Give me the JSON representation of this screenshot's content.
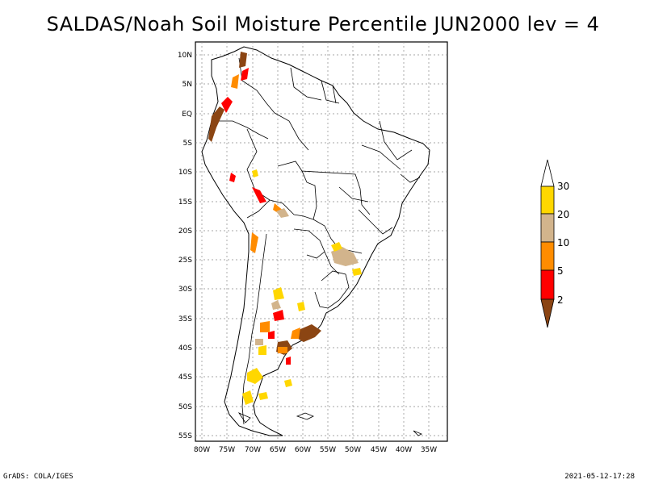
{
  "title": "SALDAS/Noah Soil Moisture Percentile JUN2000 lev = 4",
  "footer": {
    "left": "GrADS: COLA/IGES",
    "right": "2021-05-12-17:28"
  },
  "map": {
    "lon_range": [
      -81,
      -31
    ],
    "lat_range": [
      -56,
      11
    ],
    "lat_ticks": [
      "10N",
      "5N",
      "EQ",
      "5S",
      "10S",
      "15S",
      "20S",
      "25S",
      "30S",
      "35S",
      "40S",
      "45S",
      "50S",
      "55S"
    ],
    "lon_ticks": [
      "80W",
      "75W",
      "70W",
      "65W",
      "60W",
      "55W",
      "50W",
      "45W",
      "40W",
      "35W"
    ],
    "grid": true
  },
  "legend": {
    "labels": [
      "30",
      "20",
      "10",
      "5",
      "2"
    ],
    "colors": {
      "above_30": "#ffffff",
      "20_30": "#ffd700",
      "10_20": "#d2b48c",
      "5_10": "#ff8c00",
      "2_5": "#ff0000",
      "below_2": "#8b4513"
    }
  }
}
